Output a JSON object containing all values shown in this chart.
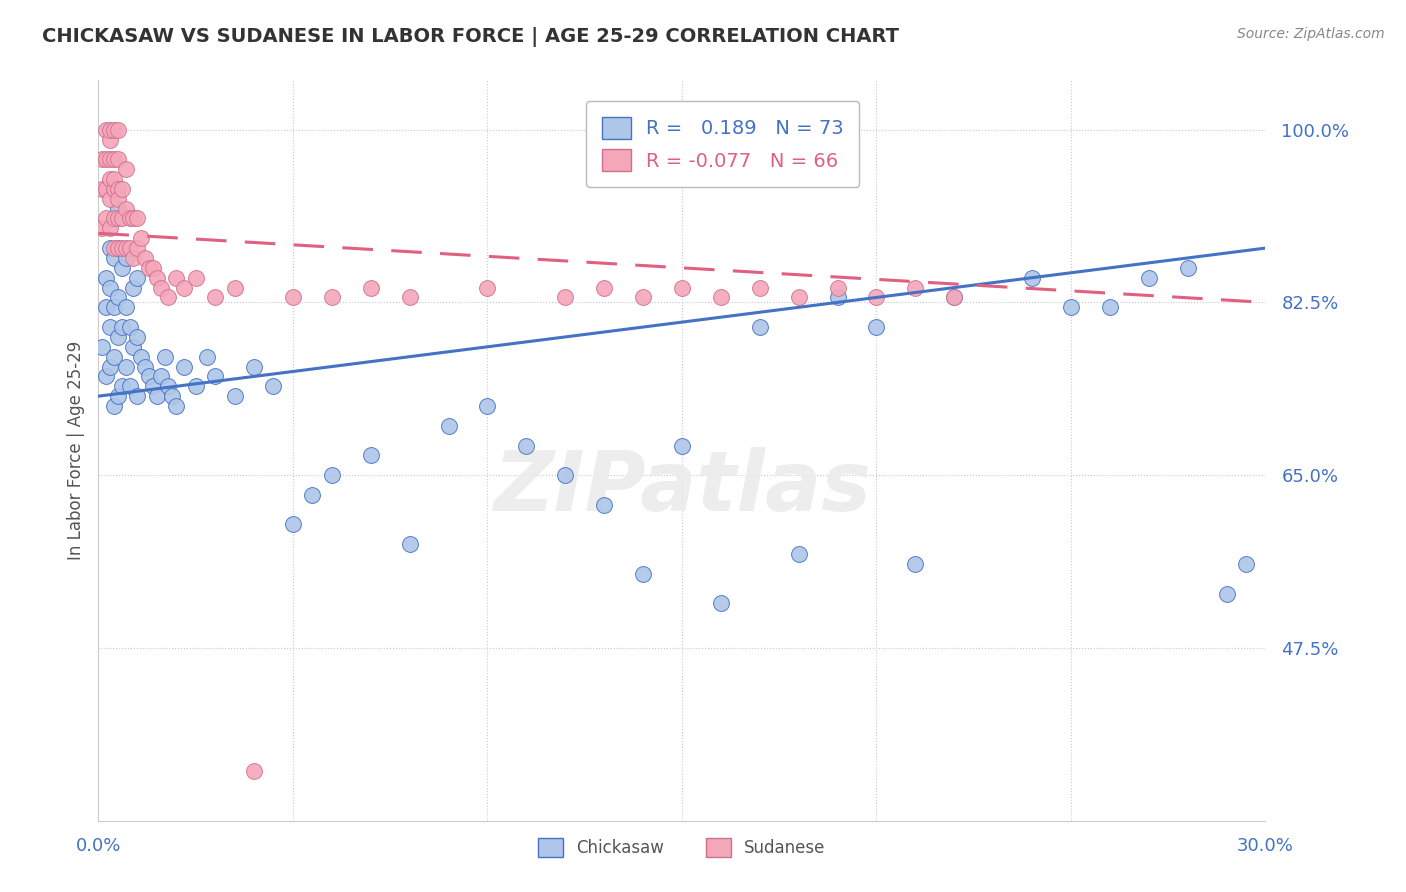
{
  "title": "CHICKASAW VS SUDANESE IN LABOR FORCE | AGE 25-29 CORRELATION CHART",
  "source": "Source: ZipAtlas.com",
  "ylabel": "In Labor Force | Age 25-29",
  "xlim": [
    0.0,
    0.3
  ],
  "ylim": [
    0.3,
    1.05
  ],
  "yticks": [
    1.0,
    0.825,
    0.65,
    0.475
  ],
  "ytick_labels": [
    "100.0%",
    "82.5%",
    "65.0%",
    "47.5%"
  ],
  "xtick_labels_show": [
    "0.0%",
    "30.0%"
  ],
  "r_chickasaw": 0.189,
  "n_chickasaw": 73,
  "r_sudanese": -0.077,
  "n_sudanese": 66,
  "chickasaw_color": "#aec6e8",
  "sudanese_color": "#f4a7b9",
  "trend_chickasaw_color": "#4472c4",
  "trend_sudanese_color": "#e06080",
  "background_color": "#ffffff",
  "grid_color": "#c8c8c8",
  "watermark_text": "ZIPatlas",
  "trend_chick_x0": 0.0,
  "trend_chick_y0": 0.73,
  "trend_chick_x1": 0.3,
  "trend_chick_y1": 0.88,
  "trend_sud_x0": 0.0,
  "trend_sud_y0": 0.895,
  "trend_sud_x1": 0.3,
  "trend_sud_y1": 0.825,
  "chickasaw_x": [
    0.001,
    0.002,
    0.002,
    0.002,
    0.003,
    0.003,
    0.003,
    0.003,
    0.004,
    0.004,
    0.004,
    0.004,
    0.005,
    0.005,
    0.005,
    0.005,
    0.005,
    0.006,
    0.006,
    0.006,
    0.007,
    0.007,
    0.007,
    0.008,
    0.008,
    0.009,
    0.009,
    0.01,
    0.01,
    0.01,
    0.011,
    0.012,
    0.013,
    0.014,
    0.015,
    0.016,
    0.017,
    0.018,
    0.019,
    0.02,
    0.022,
    0.025,
    0.028,
    0.03,
    0.035,
    0.04,
    0.045,
    0.05,
    0.055,
    0.06,
    0.07,
    0.08,
    0.09,
    0.1,
    0.11,
    0.12,
    0.14,
    0.16,
    0.18,
    0.2,
    0.22,
    0.24,
    0.26,
    0.28,
    0.29,
    0.295,
    0.13,
    0.15,
    0.17,
    0.19,
    0.21,
    0.25,
    0.27
  ],
  "chickasaw_y": [
    0.78,
    0.75,
    0.82,
    0.85,
    0.76,
    0.8,
    0.84,
    0.88,
    0.72,
    0.77,
    0.82,
    0.87,
    0.73,
    0.79,
    0.83,
    0.88,
    0.92,
    0.74,
    0.8,
    0.86,
    0.76,
    0.82,
    0.87,
    0.74,
    0.8,
    0.78,
    0.84,
    0.73,
    0.79,
    0.85,
    0.77,
    0.76,
    0.75,
    0.74,
    0.73,
    0.75,
    0.77,
    0.74,
    0.73,
    0.72,
    0.76,
    0.74,
    0.77,
    0.75,
    0.73,
    0.76,
    0.74,
    0.6,
    0.63,
    0.65,
    0.67,
    0.58,
    0.7,
    0.72,
    0.68,
    0.65,
    0.55,
    0.52,
    0.57,
    0.8,
    0.83,
    0.85,
    0.82,
    0.86,
    0.53,
    0.56,
    0.62,
    0.68,
    0.8,
    0.83,
    0.56,
    0.82,
    0.85
  ],
  "sudanese_x": [
    0.001,
    0.001,
    0.001,
    0.002,
    0.002,
    0.002,
    0.002,
    0.003,
    0.003,
    0.003,
    0.003,
    0.003,
    0.003,
    0.004,
    0.004,
    0.004,
    0.004,
    0.004,
    0.004,
    0.005,
    0.005,
    0.005,
    0.005,
    0.005,
    0.005,
    0.006,
    0.006,
    0.006,
    0.007,
    0.007,
    0.007,
    0.008,
    0.008,
    0.009,
    0.009,
    0.01,
    0.01,
    0.011,
    0.012,
    0.013,
    0.014,
    0.015,
    0.016,
    0.018,
    0.02,
    0.022,
    0.025,
    0.03,
    0.035,
    0.04,
    0.05,
    0.06,
    0.07,
    0.08,
    0.1,
    0.12,
    0.13,
    0.14,
    0.15,
    0.16,
    0.17,
    0.18,
    0.19,
    0.2,
    0.21,
    0.22
  ],
  "sudanese_y": [
    0.9,
    0.94,
    0.97,
    0.91,
    0.94,
    0.97,
    1.0,
    0.9,
    0.93,
    0.95,
    0.97,
    0.99,
    1.0,
    0.88,
    0.91,
    0.94,
    0.97,
    1.0,
    0.95,
    0.88,
    0.91,
    0.94,
    0.97,
    1.0,
    0.93,
    0.88,
    0.91,
    0.94,
    0.88,
    0.92,
    0.96,
    0.88,
    0.91,
    0.87,
    0.91,
    0.88,
    0.91,
    0.89,
    0.87,
    0.86,
    0.86,
    0.85,
    0.84,
    0.83,
    0.85,
    0.84,
    0.85,
    0.83,
    0.84,
    0.35,
    0.83,
    0.83,
    0.84,
    0.83,
    0.84,
    0.83,
    0.84,
    0.83,
    0.84,
    0.83,
    0.84,
    0.83,
    0.84,
    0.83,
    0.84,
    0.83
  ]
}
